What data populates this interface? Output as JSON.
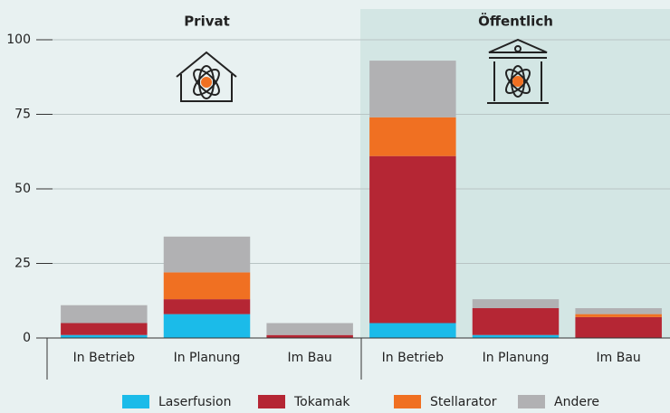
{
  "chart_data": {
    "type": "stacked_bar",
    "groups": [
      "Privat",
      "Öffentlich"
    ],
    "categories": [
      "In Betrieb",
      "In Planung",
      "Im Bau",
      "In Betrieb",
      "In Planung",
      "Im Bau"
    ],
    "series": [
      {
        "name": "Laserfusion",
        "color": "#1bbbe9",
        "values": [
          1,
          8,
          0,
          5,
          1,
          0
        ]
      },
      {
        "name": "Tokamak",
        "color": "#b52634",
        "values": [
          4,
          5,
          1,
          56,
          9,
          7
        ]
      },
      {
        "name": "Stellarator",
        "color": "#f07022",
        "values": [
          0,
          9,
          0,
          13,
          0,
          1
        ]
      },
      {
        "name": "Andere",
        "color": "#b1b1b3",
        "values": [
          6,
          12,
          4,
          19,
          3,
          2
        ]
      }
    ],
    "ylim": [
      0,
      100
    ],
    "yticks": [
      0,
      25,
      50,
      75,
      100
    ],
    "grid": true
  }
}
